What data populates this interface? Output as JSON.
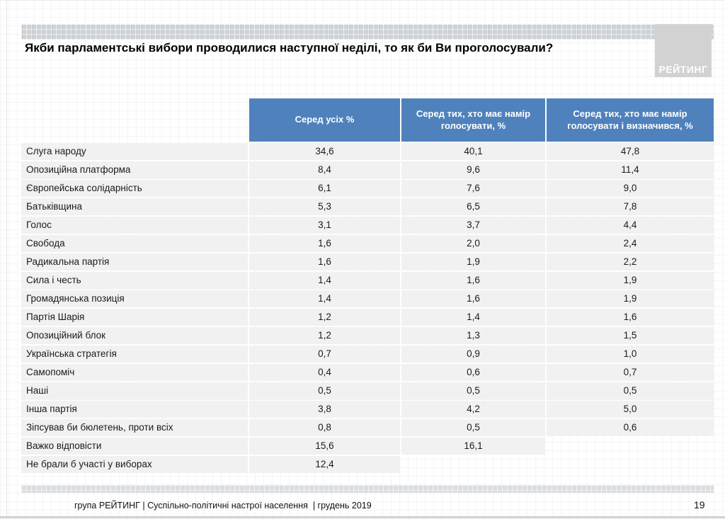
{
  "slide": {
    "title": "Якби парламентські вибори проводилися наступної неділі, то як би Ви проголосували?",
    "logo_text": "РЕЙТИНГ",
    "footer_text": "група РЕЙТИНГ | Суспільно-політичні настрої населення  | грудень 2019",
    "page_number": "19"
  },
  "colors": {
    "header_blue": "#4f81bd",
    "row_grey": "#f1f1f1",
    "band_grey": "#ced2d6",
    "logo_grey": "#d2d2d2"
  },
  "chart_data": {
    "type": "table",
    "title": "Якби парламентські вибори проводилися наступної неділі, то як би Ви проголосували?",
    "columns": [
      "Серед усіх %",
      "Серед тих, хто має намір голосувати, %",
      "Серед тих, хто має намір голосувати і визначився, %"
    ],
    "rows": [
      {
        "label": "Слуга народу",
        "values": [
          "34,6",
          "40,1",
          "47,8"
        ]
      },
      {
        "label": "Опозиційна платформа",
        "values": [
          "8,4",
          "9,6",
          "11,4"
        ]
      },
      {
        "label": "Європейська солідарність",
        "values": [
          "6,1",
          "7,6",
          "9,0"
        ]
      },
      {
        "label": "Батьківщина",
        "values": [
          "5,3",
          "6,5",
          "7,8"
        ]
      },
      {
        "label": "Голос",
        "values": [
          "3,1",
          "3,7",
          "4,4"
        ]
      },
      {
        "label": "Свобода",
        "values": [
          "1,6",
          "2,0",
          "2,4"
        ]
      },
      {
        "label": "Радикальна партія",
        "values": [
          "1,6",
          "1,9",
          "2,2"
        ]
      },
      {
        "label": "Сила і честь",
        "values": [
          "1,4",
          "1,6",
          "1,9"
        ]
      },
      {
        "label": "Громадянська позиція",
        "values": [
          "1,4",
          "1,6",
          "1,9"
        ]
      },
      {
        "label": "Партія Шарія",
        "values": [
          "1,2",
          "1,4",
          "1,6"
        ]
      },
      {
        "label": "Опозиційний блок",
        "values": [
          "1,2",
          "1,3",
          "1,5"
        ]
      },
      {
        "label": "Українська стратегія",
        "values": [
          "0,7",
          "0,9",
          "1,0"
        ]
      },
      {
        "label": "Самопоміч",
        "values": [
          "0,4",
          "0,6",
          "0,7"
        ]
      },
      {
        "label": "Наші",
        "values": [
          "0,5",
          "0,5",
          "0,5"
        ]
      },
      {
        "label": "Інша партія",
        "values": [
          "3,8",
          "4,2",
          "5,0"
        ]
      },
      {
        "label": "Зіпсував би бюлетень, проти всіх",
        "values": [
          "0,8",
          "0,5",
          "0,6"
        ]
      },
      {
        "label": "Важко відповісти",
        "values": [
          "15,6",
          "16,1",
          null
        ]
      },
      {
        "label": "Не брали б участі у виборах",
        "values": [
          "12,4",
          null,
          null
        ]
      }
    ]
  }
}
